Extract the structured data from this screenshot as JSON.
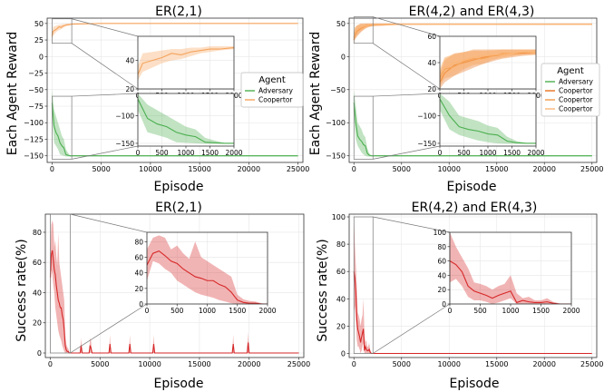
{
  "chart_data": [
    {
      "type": "line",
      "title": "ER(2,1)",
      "xlabel": "Episode",
      "ylabel": "Each Agent Reward",
      "xlim": [
        -500,
        25500
      ],
      "ylim": [
        -160,
        58
      ],
      "xticks": [
        0,
        5000,
        10000,
        15000,
        20000,
        25000
      ],
      "yticks": [
        -150,
        -125,
        -100,
        -75,
        -50,
        -25,
        0,
        25,
        50
      ],
      "legend": {
        "title": "Agent",
        "position": "right",
        "entries": [
          "Adversary",
          "Coopertor"
        ]
      },
      "series": [
        {
          "name": "Coopertor",
          "color": "#f5a35c",
          "x": [
            0,
            100,
            300,
            500,
            700,
            900,
            1100,
            1300,
            1500,
            1700,
            2000,
            5000,
            10000,
            15000,
            20000,
            25000
          ],
          "y": [
            30,
            38,
            40,
            42,
            45,
            44,
            46,
            47,
            48,
            48,
            49,
            50,
            50,
            50,
            50,
            50
          ],
          "lower": [
            26,
            32,
            35,
            38,
            40,
            41,
            43,
            45,
            46,
            47,
            48,
            49.5,
            49.5,
            49.5,
            49.5,
            49.5
          ],
          "upper": [
            36,
            45,
            46,
            47,
            48,
            48,
            49,
            49,
            50,
            50,
            50,
            50.5,
            50.5,
            50.5,
            50.5,
            50.5
          ]
        },
        {
          "name": "Adversary",
          "color": "#4caf50",
          "x": [
            0,
            200,
            400,
            600,
            800,
            1000,
            1200,
            1400,
            1600,
            1800,
            2000,
            5000,
            10000,
            15000,
            20000,
            25000
          ],
          "y": [
            -70,
            -105,
            -115,
            -120,
            -130,
            -135,
            -138,
            -148,
            -149,
            -150,
            -150,
            -150,
            -150,
            -150,
            -150,
            -150
          ],
          "lower": [
            -90,
            -130,
            -135,
            -140,
            -148,
            -149,
            -150,
            -151,
            -151,
            -151,
            -151,
            -151,
            -151,
            -151,
            -151,
            -151
          ],
          "upper": [
            -50,
            -80,
            -90,
            -100,
            -110,
            -120,
            -125,
            -140,
            -145,
            -149,
            -149,
            -149,
            -149,
            -149,
            -149,
            -149
          ]
        }
      ],
      "insets": [
        {
          "of": "Coopertor",
          "xlim": [
            0,
            2000
          ],
          "ylim": [
            20,
            57
          ],
          "xticks": [
            0,
            500,
            1000,
            1500,
            2000
          ],
          "yticks": [
            20,
            40
          ]
        },
        {
          "of": "Adversary",
          "xlim": [
            0,
            2000
          ],
          "ylim": [
            -155,
            -60
          ],
          "xticks": [
            0,
            500,
            1000,
            1500,
            2000
          ],
          "yticks": [
            -150,
            -100
          ]
        }
      ]
    },
    {
      "type": "line",
      "title": "ER(4,2) and ER(4,3)",
      "xlabel": "Episode",
      "ylabel": "Each Agent Reward",
      "xlim": [
        -500,
        25500
      ],
      "ylim": [
        -160,
        58
      ],
      "xticks": [
        0,
        5000,
        10000,
        15000,
        20000,
        25000
      ],
      "yticks": [
        -150,
        -100,
        -50,
        0,
        50
      ],
      "legend": {
        "title": "Agent",
        "position": "right",
        "entries": [
          "Adversary",
          "Coopertor",
          "Coopertor",
          "Coopertor"
        ]
      },
      "series": [
        {
          "name": "Coopertor",
          "color": "#e8711b",
          "x": [
            0,
            100,
            300,
            500,
            700,
            900,
            1100,
            1300,
            1500,
            1700,
            2000,
            5000,
            10000,
            15000,
            20000,
            25000
          ],
          "y": [
            25,
            32,
            38,
            40,
            42,
            44,
            45,
            46,
            47,
            47,
            48,
            49,
            49,
            49,
            49,
            49
          ],
          "lower": [
            20,
            25,
            30,
            33,
            36,
            39,
            41,
            43,
            44,
            45,
            46,
            48,
            48,
            48,
            48,
            48
          ],
          "upper": [
            32,
            42,
            47,
            48,
            50,
            50,
            50,
            50,
            50,
            50,
            50,
            50,
            50,
            50,
            50,
            50
          ]
        },
        {
          "name": "Coopertor",
          "color": "#f39a4a",
          "x": [
            0,
            100,
            300,
            500,
            700,
            900,
            1100,
            1300,
            1500,
            1700,
            2000,
            5000,
            10000,
            15000,
            20000,
            25000
          ],
          "y": [
            28,
            35,
            37,
            41,
            43,
            43,
            45,
            47,
            47,
            48,
            48,
            49,
            49,
            49,
            49,
            49
          ],
          "lower": [
            22,
            28,
            30,
            35,
            38,
            39,
            42,
            44,
            45,
            46,
            46,
            48,
            48,
            48,
            48,
            48
          ],
          "upper": [
            34,
            44,
            46,
            48,
            49,
            49,
            49,
            50,
            50,
            50,
            50,
            50,
            50,
            50,
            50,
            50
          ]
        },
        {
          "name": "Coopertor",
          "color": "#fbb676",
          "x": [
            0,
            100,
            300,
            500,
            700,
            900,
            1100,
            1300,
            1500,
            1700,
            2000,
            5000,
            10000,
            15000,
            20000,
            25000
          ],
          "y": [
            30,
            36,
            40,
            42,
            44,
            45,
            46,
            46,
            47,
            48,
            48,
            49,
            49,
            49,
            49,
            49
          ],
          "lower": [
            24,
            29,
            34,
            36,
            39,
            41,
            43,
            43,
            45,
            46,
            46,
            48,
            48,
            48,
            48,
            48
          ],
          "upper": [
            36,
            44,
            47,
            48,
            49,
            49,
            50,
            50,
            50,
            50,
            50,
            50,
            50,
            50,
            50,
            50
          ]
        },
        {
          "name": "Adversary",
          "color": "#4caf50",
          "x": [
            0,
            200,
            400,
            600,
            800,
            1000,
            1200,
            1400,
            1600,
            1800,
            2000,
            5000,
            10000,
            15000,
            20000,
            25000
          ],
          "y": [
            -70,
            -100,
            -120,
            -125,
            -128,
            -133,
            -135,
            -146,
            -149,
            -150,
            -150,
            -150,
            -150,
            -150,
            -150,
            -150
          ],
          "lower": [
            -90,
            -125,
            -135,
            -140,
            -145,
            -148,
            -150,
            -151,
            -151,
            -151,
            -151,
            -151,
            -151,
            -151,
            -151,
            -151
          ],
          "upper": [
            -50,
            -75,
            -100,
            -105,
            -110,
            -118,
            -122,
            -138,
            -146,
            -149,
            -149,
            -149,
            -149,
            -149,
            -149,
            -149
          ]
        }
      ],
      "insets": [
        {
          "of": "Coopertor",
          "xlim": [
            0,
            2000
          ],
          "ylim": [
            20,
            60
          ],
          "xticks": [
            0,
            500,
            1000,
            1500,
            2000
          ],
          "yticks": [
            20,
            40,
            60
          ]
        },
        {
          "of": "Adversary",
          "xlim": [
            0,
            2000
          ],
          "ylim": [
            -155,
            -60
          ],
          "xticks": [
            0,
            500,
            1000,
            1500,
            2000
          ],
          "yticks": [
            -150,
            -100
          ]
        }
      ]
    },
    {
      "type": "line",
      "title": "ER(2,1)",
      "xlabel": "Episode",
      "ylabel": "Success rate(%)",
      "xlim": [
        -500,
        25500
      ],
      "ylim": [
        -3,
        92
      ],
      "xticks": [
        0,
        5000,
        10000,
        15000,
        20000,
        25000
      ],
      "yticks": [
        0,
        20,
        40,
        60,
        80
      ],
      "series": [
        {
          "color": "#d62728",
          "x": [
            0,
            100,
            200,
            300,
            400,
            500,
            600,
            700,
            800,
            900,
            1000,
            1100,
            1200,
            1300,
            1400,
            1500,
            1600,
            1700,
            1800,
            1900,
            2000,
            3000,
            3100,
            3200,
            3900,
            4000,
            4100,
            4200,
            5900,
            6000,
            6100,
            7900,
            8000,
            8100,
            10300,
            10400,
            10500,
            18300,
            18400,
            18500,
            19800,
            19900,
            20000,
            25000
          ],
          "y": [
            50,
            65,
            68,
            62,
            55,
            52,
            45,
            40,
            35,
            33,
            30,
            30,
            25,
            22,
            15,
            5,
            2,
            1,
            1,
            0,
            0,
            0,
            5,
            0,
            0,
            5,
            3,
            0,
            0,
            6,
            0,
            0,
            6,
            0,
            0,
            6,
            0,
            0,
            6,
            0,
            0,
            7,
            0,
            0
          ],
          "lower": [
            30,
            55,
            52,
            45,
            40,
            30,
            25,
            20,
            15,
            12,
            10,
            8,
            5,
            3,
            1,
            0,
            0,
            0,
            0,
            0,
            0,
            0,
            0,
            0,
            0,
            0,
            0,
            0,
            0,
            0,
            0,
            0,
            0,
            0,
            0,
            0,
            0,
            0,
            0,
            0,
            0,
            0,
            0,
            0
          ],
          "upper": [
            70,
            85,
            88,
            85,
            70,
            75,
            65,
            58,
            80,
            60,
            55,
            50,
            45,
            40,
            35,
            12,
            6,
            4,
            3,
            1,
            0,
            0,
            10,
            0,
            0,
            10,
            8,
            0,
            0,
            12,
            0,
            0,
            12,
            0,
            0,
            12,
            0,
            0,
            12,
            0,
            0,
            14,
            0,
            0
          ]
        }
      ],
      "insets": [
        {
          "xlim": [
            0,
            2000
          ],
          "ylim": [
            0,
            92
          ],
          "xticks": [
            0,
            500,
            1000,
            1500,
            2000
          ],
          "yticks": [
            0,
            20,
            40,
            60,
            80
          ]
        }
      ]
    },
    {
      "type": "line",
      "title": "ER(4,2) and ER(4,3)",
      "xlabel": "Episode",
      "ylabel": "Success rate(%)",
      "xlim": [
        -500,
        25500
      ],
      "ylim": [
        -3,
        102
      ],
      "xticks": [
        0,
        5000,
        10000,
        15000,
        20000,
        25000
      ],
      "yticks": [
        0,
        20,
        40,
        60,
        80,
        100
      ],
      "series": [
        {
          "color": "#d62728",
          "x": [
            0,
            100,
            200,
            300,
            400,
            500,
            600,
            700,
            800,
            900,
            1000,
            1100,
            1200,
            1300,
            1400,
            1500,
            1600,
            1700,
            1800,
            1900,
            2000,
            25000
          ],
          "y": [
            60,
            55,
            45,
            25,
            18,
            15,
            12,
            8,
            12,
            15,
            18,
            2,
            5,
            3,
            2,
            2,
            3,
            1,
            0,
            0,
            0,
            0
          ],
          "lower": [
            30,
            35,
            25,
            10,
            5,
            5,
            3,
            0,
            2,
            5,
            8,
            0,
            0,
            0,
            0,
            0,
            0,
            0,
            0,
            0,
            0,
            0
          ],
          "upper": [
            100,
            80,
            65,
            50,
            30,
            28,
            25,
            20,
            25,
            28,
            40,
            15,
            8,
            10,
            5,
            5,
            8,
            3,
            1,
            0,
            0,
            0
          ]
        }
      ],
      "insets": [
        {
          "xlim": [
            0,
            2000
          ],
          "ylim": [
            0,
            100
          ],
          "xticks": [
            0,
            500,
            1000,
            1500,
            2000
          ],
          "yticks": [
            0,
            20,
            40,
            60,
            80,
            100
          ]
        }
      ]
    }
  ]
}
